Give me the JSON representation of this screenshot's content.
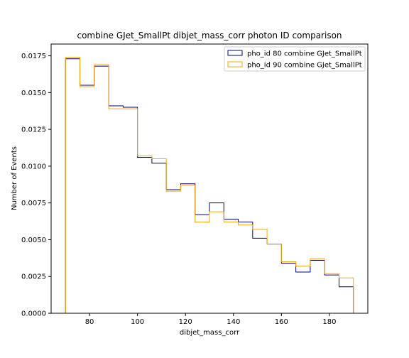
{
  "chart_data": {
    "type": "histogram",
    "title": "combine GJet_SmallPt dibjet_mass_corr photon ID comparison",
    "xlabel": "dibjet_mass_corr",
    "ylabel": "Number of Events",
    "xlim": [
      64,
      196
    ],
    "ylim": [
      0,
      0.0183
    ],
    "xticks": [
      80,
      100,
      120,
      140,
      160,
      180
    ],
    "yticks": [
      0.0,
      0.0025,
      0.005,
      0.0075,
      0.01,
      0.0125,
      0.015,
      0.0175
    ],
    "ytick_labels": [
      "0.0000",
      "0.0025",
      "0.0050",
      "0.0075",
      "0.0100",
      "0.0125",
      "0.0150",
      "0.0175"
    ],
    "bin_edges": [
      70,
      76,
      82,
      88,
      94,
      100,
      106,
      112,
      118,
      124,
      130,
      136,
      142,
      148,
      154,
      160,
      166,
      172,
      178,
      184,
      190
    ],
    "grid": false,
    "legend_position": "top-right",
    "series": [
      {
        "name": "pho_id 80 combine GJet_SmallPt",
        "color": "#00008b",
        "values": [
          0.0173,
          0.0155,
          0.0168,
          0.0141,
          0.014,
          0.0106,
          0.0102,
          0.0084,
          0.0088,
          0.0067,
          0.0075,
          0.0064,
          0.0062,
          0.0051,
          0.0047,
          0.0034,
          0.0028,
          0.0036,
          0.0026,
          0.0018
        ]
      },
      {
        "name": "pho_id 90 combine GJet_SmallPt",
        "color": "#ffa500",
        "values": [
          0.0174,
          0.0154,
          0.0169,
          0.0139,
          0.0139,
          0.0107,
          0.0105,
          0.0083,
          0.0087,
          0.0062,
          0.0069,
          0.0062,
          0.006,
          0.0057,
          0.0047,
          0.0035,
          0.0032,
          0.0037,
          0.0027,
          0.0024
        ]
      }
    ]
  }
}
